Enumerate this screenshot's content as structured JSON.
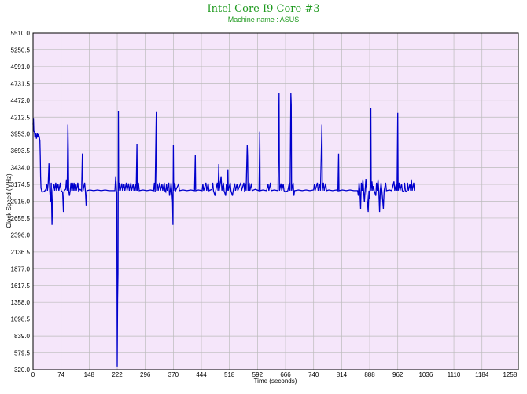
{
  "chart_data": {
    "type": "line",
    "title": "Intel Core I9 Core #3",
    "subtitle": "Machine name : ASUS",
    "xlabel": "Time (seconds)",
    "ylabel": "Clock Speed (MHz)",
    "xlim": [
      0,
      1280
    ],
    "ylim": [
      320.0,
      5510.0
    ],
    "x_ticks": [
      "0",
      "74",
      "148",
      "222",
      "296",
      "370",
      "444",
      "518",
      "592",
      "666",
      "740",
      "814",
      "888",
      "962",
      "1036",
      "1110",
      "1184",
      "1258"
    ],
    "y_ticks": [
      "320.0",
      "579.5",
      "839.0",
      "1098.5",
      "1358.0",
      "1617.5",
      "1877.0",
      "2136.5",
      "2396.0",
      "2655.5",
      "2915.0",
      "3174.5",
      "3434.0",
      "3693.5",
      "3953.0",
      "4212.5",
      "4472.0",
      "4731.5",
      "4991.0",
      "5250.5",
      "5510.0"
    ],
    "grid": true,
    "colors": {
      "background": "#f5e6fa",
      "line": "#0000cc",
      "grid": "#bbbbbb",
      "title": "#1f9a1f"
    },
    "series": [
      {
        "values": [
          [
            0,
            4100
          ],
          [
            1,
            4200
          ],
          [
            2,
            4000
          ],
          [
            4,
            3980
          ],
          [
            5,
            3900
          ],
          [
            7,
            3960
          ],
          [
            9,
            3880
          ],
          [
            11,
            3960
          ],
          [
            13,
            3900
          ],
          [
            14,
            3950
          ],
          [
            16,
            3920
          ],
          [
            18,
            3850
          ],
          [
            19,
            3600
          ],
          [
            20,
            3300
          ],
          [
            21,
            3120
          ],
          [
            23,
            3070
          ],
          [
            26,
            3060
          ],
          [
            30,
            3070
          ],
          [
            34,
            3100
          ],
          [
            36,
            3180
          ],
          [
            38,
            3080
          ],
          [
            40,
            3200
          ],
          [
            42,
            3500
          ],
          [
            44,
            3080
          ],
          [
            46,
            2900
          ],
          [
            48,
            3200
          ],
          [
            50,
            2550
          ],
          [
            52,
            3080
          ],
          [
            55,
            3180
          ],
          [
            57,
            3080
          ],
          [
            60,
            3200
          ],
          [
            62,
            3080
          ],
          [
            66,
            3180
          ],
          [
            68,
            3080
          ],
          [
            72,
            3200
          ],
          [
            74,
            3080
          ],
          [
            78,
            3060
          ],
          [
            80,
            2750
          ],
          [
            82,
            3080
          ],
          [
            86,
            3100
          ],
          [
            88,
            3250
          ],
          [
            90,
            3080
          ],
          [
            92,
            4100
          ],
          [
            93,
            3700
          ],
          [
            94,
            3080
          ],
          [
            96,
            3000
          ],
          [
            98,
            3080
          ],
          [
            100,
            3200
          ],
          [
            102,
            3080
          ],
          [
            104,
            3200
          ],
          [
            106,
            3080
          ],
          [
            108,
            3200
          ],
          [
            110,
            3080
          ],
          [
            112,
            3180
          ],
          [
            114,
            3080
          ],
          [
            118,
            3200
          ],
          [
            120,
            3080
          ],
          [
            124,
            3100
          ],
          [
            128,
            3080
          ],
          [
            130,
            3650
          ],
          [
            131,
            3400
          ],
          [
            132,
            3080
          ],
          [
            136,
            3200
          ],
          [
            138,
            3080
          ],
          [
            140,
            2850
          ],
          [
            142,
            3080
          ],
          [
            150,
            3090
          ],
          [
            160,
            3080
          ],
          [
            170,
            3090
          ],
          [
            180,
            3080
          ],
          [
            190,
            3090
          ],
          [
            200,
            3080
          ],
          [
            210,
            3080
          ],
          [
            216,
            3080
          ],
          [
            218,
            3300
          ],
          [
            220,
            3080
          ],
          [
            221,
            3050
          ],
          [
            222,
            370
          ],
          [
            223,
            1400
          ],
          [
            224,
            1800
          ],
          [
            225,
            4300
          ],
          [
            226,
            3080
          ],
          [
            228,
            3200
          ],
          [
            230,
            3080
          ],
          [
            234,
            3190
          ],
          [
            236,
            3080
          ],
          [
            240,
            3180
          ],
          [
            242,
            3080
          ],
          [
            246,
            3200
          ],
          [
            248,
            3080
          ],
          [
            252,
            3190
          ],
          [
            254,
            3080
          ],
          [
            258,
            3200
          ],
          [
            260,
            3080
          ],
          [
            264,
            3180
          ],
          [
            266,
            3080
          ],
          [
            270,
            3180
          ],
          [
            272,
            3080
          ],
          [
            274,
            3800
          ],
          [
            275,
            3080
          ],
          [
            278,
            3200
          ],
          [
            280,
            3080
          ],
          [
            290,
            3090
          ],
          [
            300,
            3080
          ],
          [
            310,
            3090
          ],
          [
            318,
            3080
          ],
          [
            320,
            3200
          ],
          [
            322,
            3060
          ],
          [
            324,
            3900
          ],
          [
            325,
            4290
          ],
          [
            326,
            3080
          ],
          [
            328,
            3190
          ],
          [
            330,
            3080
          ],
          [
            334,
            3200
          ],
          [
            336,
            3080
          ],
          [
            340,
            3180
          ],
          [
            342,
            3080
          ],
          [
            346,
            3200
          ],
          [
            348,
            3080
          ],
          [
            350,
            3060
          ],
          [
            352,
            3180
          ],
          [
            354,
            3080
          ],
          [
            358,
            3200
          ],
          [
            360,
            3000
          ],
          [
            362,
            3080
          ],
          [
            364,
            3200
          ],
          [
            366,
            3080
          ],
          [
            368,
            2900
          ],
          [
            369,
            2550
          ],
          [
            370,
            3780
          ],
          [
            371,
            3080
          ],
          [
            374,
            3200
          ],
          [
            376,
            3080
          ],
          [
            384,
            3180
          ],
          [
            386,
            3080
          ],
          [
            396,
            3090
          ],
          [
            406,
            3080
          ],
          [
            416,
            3090
          ],
          [
            426,
            3080
          ],
          [
            428,
            3630
          ],
          [
            429,
            3080
          ],
          [
            436,
            3090
          ],
          [
            446,
            3080
          ],
          [
            448,
            3180
          ],
          [
            450,
            3080
          ],
          [
            456,
            3200
          ],
          [
            458,
            3080
          ],
          [
            462,
            3190
          ],
          [
            464,
            3080
          ],
          [
            472,
            3100
          ],
          [
            474,
            3200
          ],
          [
            476,
            3080
          ],
          [
            480,
            3000
          ],
          [
            482,
            3080
          ],
          [
            486,
            3200
          ],
          [
            488,
            3080
          ],
          [
            490,
            3490
          ],
          [
            491,
            3080
          ],
          [
            494,
            3200
          ],
          [
            496,
            3300
          ],
          [
            498,
            3080
          ],
          [
            502,
            3200
          ],
          [
            504,
            3080
          ],
          [
            508,
            3000
          ],
          [
            510,
            3180
          ],
          [
            512,
            3080
          ],
          [
            514,
            3410
          ],
          [
            515,
            3080
          ],
          [
            520,
            3200
          ],
          [
            522,
            3080
          ],
          [
            526,
            3000
          ],
          [
            528,
            3080
          ],
          [
            532,
            3190
          ],
          [
            534,
            3080
          ],
          [
            538,
            3180
          ],
          [
            540,
            3080
          ],
          [
            548,
            3200
          ],
          [
            550,
            3080
          ],
          [
            556,
            3200
          ],
          [
            558,
            3060
          ],
          [
            560,
            3190
          ],
          [
            562,
            3080
          ],
          [
            565,
            3780
          ],
          [
            566,
            3600
          ],
          [
            567,
            3080
          ],
          [
            570,
            3200
          ],
          [
            572,
            3080
          ],
          [
            576,
            3190
          ],
          [
            578,
            3080
          ],
          [
            586,
            3100
          ],
          [
            596,
            3080
          ],
          [
            598,
            3990
          ],
          [
            599,
            3080
          ],
          [
            606,
            3090
          ],
          [
            616,
            3080
          ],
          [
            620,
            3180
          ],
          [
            622,
            3080
          ],
          [
            626,
            3200
          ],
          [
            628,
            3080
          ],
          [
            636,
            3090
          ],
          [
            646,
            3080
          ],
          [
            648,
            4050
          ],
          [
            649,
            4580
          ],
          [
            650,
            3080
          ],
          [
            654,
            3190
          ],
          [
            656,
            3080
          ],
          [
            660,
            3180
          ],
          [
            662,
            3080
          ],
          [
            666,
            3060
          ],
          [
            672,
            3080
          ],
          [
            676,
            3200
          ],
          [
            678,
            3080
          ],
          [
            680,
            4580
          ],
          [
            681,
            4400
          ],
          [
            682,
            3080
          ],
          [
            686,
            3200
          ],
          [
            688,
            3000
          ],
          [
            690,
            3080
          ],
          [
            700,
            3090
          ],
          [
            710,
            3080
          ],
          [
            720,
            3090
          ],
          [
            730,
            3080
          ],
          [
            740,
            3090
          ],
          [
            742,
            3180
          ],
          [
            744,
            3080
          ],
          [
            750,
            3200
          ],
          [
            752,
            3080
          ],
          [
            756,
            3180
          ],
          [
            758,
            3080
          ],
          [
            762,
            4100
          ],
          [
            763,
            3080
          ],
          [
            766,
            3200
          ],
          [
            768,
            3080
          ],
          [
            772,
            3190
          ],
          [
            774,
            3080
          ],
          [
            780,
            3090
          ],
          [
            790,
            3080
          ],
          [
            800,
            3090
          ],
          [
            804,
            3080
          ],
          [
            806,
            3650
          ],
          [
            807,
            3080
          ],
          [
            816,
            3090
          ],
          [
            826,
            3080
          ],
          [
            836,
            3090
          ],
          [
            846,
            3080
          ],
          [
            850,
            3080
          ],
          [
            856,
            3080
          ],
          [
            858,
            3000
          ],
          [
            860,
            3200
          ],
          [
            862,
            3080
          ],
          [
            864,
            2800
          ],
          [
            866,
            3200
          ],
          [
            868,
            3080
          ],
          [
            870,
            3250
          ],
          [
            872,
            3080
          ],
          [
            874,
            2900
          ],
          [
            876,
            3100
          ],
          [
            878,
            3260
          ],
          [
            880,
            3080
          ],
          [
            884,
            2750
          ],
          [
            886,
            3080
          ],
          [
            888,
            2950
          ],
          [
            890,
            3250
          ],
          [
            891,
            4350
          ],
          [
            892,
            3080
          ],
          [
            894,
            3220
          ],
          [
            896,
            3080
          ],
          [
            898,
            3150
          ],
          [
            900,
            3080
          ],
          [
            904,
            3000
          ],
          [
            906,
            3200
          ],
          [
            908,
            3080
          ],
          [
            910,
            3250
          ],
          [
            912,
            3080
          ],
          [
            914,
            2750
          ],
          [
            916,
            3080
          ],
          [
            918,
            3200
          ],
          [
            920,
            3080
          ],
          [
            924,
            2800
          ],
          [
            926,
            3080
          ],
          [
            930,
            3200
          ],
          [
            932,
            3080
          ],
          [
            940,
            3090
          ],
          [
            946,
            3080
          ],
          [
            952,
            3220
          ],
          [
            954,
            3080
          ],
          [
            958,
            3180
          ],
          [
            960,
            3080
          ],
          [
            962,
            4280
          ],
          [
            963,
            3080
          ],
          [
            966,
            3200
          ],
          [
            968,
            3080
          ],
          [
            972,
            3180
          ],
          [
            974,
            3080
          ],
          [
            978,
            3060
          ],
          [
            980,
            3200
          ],
          [
            982,
            3080
          ],
          [
            986,
            3060
          ],
          [
            988,
            3200
          ],
          [
            990,
            3080
          ],
          [
            994,
            3180
          ],
          [
            996,
            3080
          ],
          [
            998,
            3250
          ],
          [
            1000,
            3080
          ],
          [
            1004,
            3200
          ],
          [
            1006,
            3080
          ]
        ]
      }
    ]
  }
}
